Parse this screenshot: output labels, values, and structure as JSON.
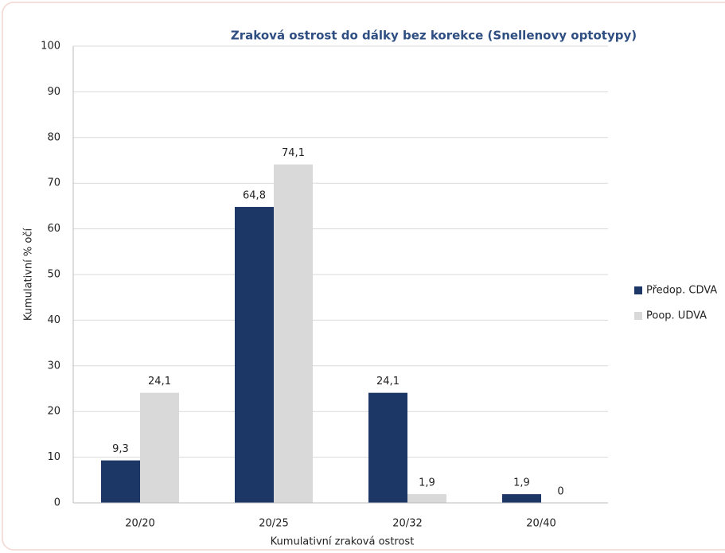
{
  "chart_data": {
    "type": "bar",
    "title": "Zraková ostrost  do dálky bez korekce (Snellenovy optotypy)",
    "xlabel": "Kumulativní  zraková ostrost",
    "ylabel": "Kumulativní % očí",
    "categories": [
      "20/20",
      "20/25",
      "20/32",
      "20/40"
    ],
    "series": [
      {
        "name": "Předop. CDVA",
        "color": "#1c3665",
        "values": [
          9.3,
          64.8,
          24.1,
          1.9
        ],
        "value_labels": [
          "9,3",
          "64,8",
          "24,1",
          "1,9"
        ]
      },
      {
        "name": "Poop. UDVA",
        "color": "#d9d9d9",
        "values": [
          24.1,
          74.1,
          1.9,
          0
        ],
        "value_labels": [
          "24,1",
          "74,1",
          "1,9",
          "0"
        ]
      }
    ],
    "ylim": [
      0,
      100
    ],
    "yticks": [
      0,
      10,
      20,
      30,
      40,
      50,
      60,
      70,
      80,
      90,
      100
    ],
    "grid": true,
    "legend": "right"
  }
}
